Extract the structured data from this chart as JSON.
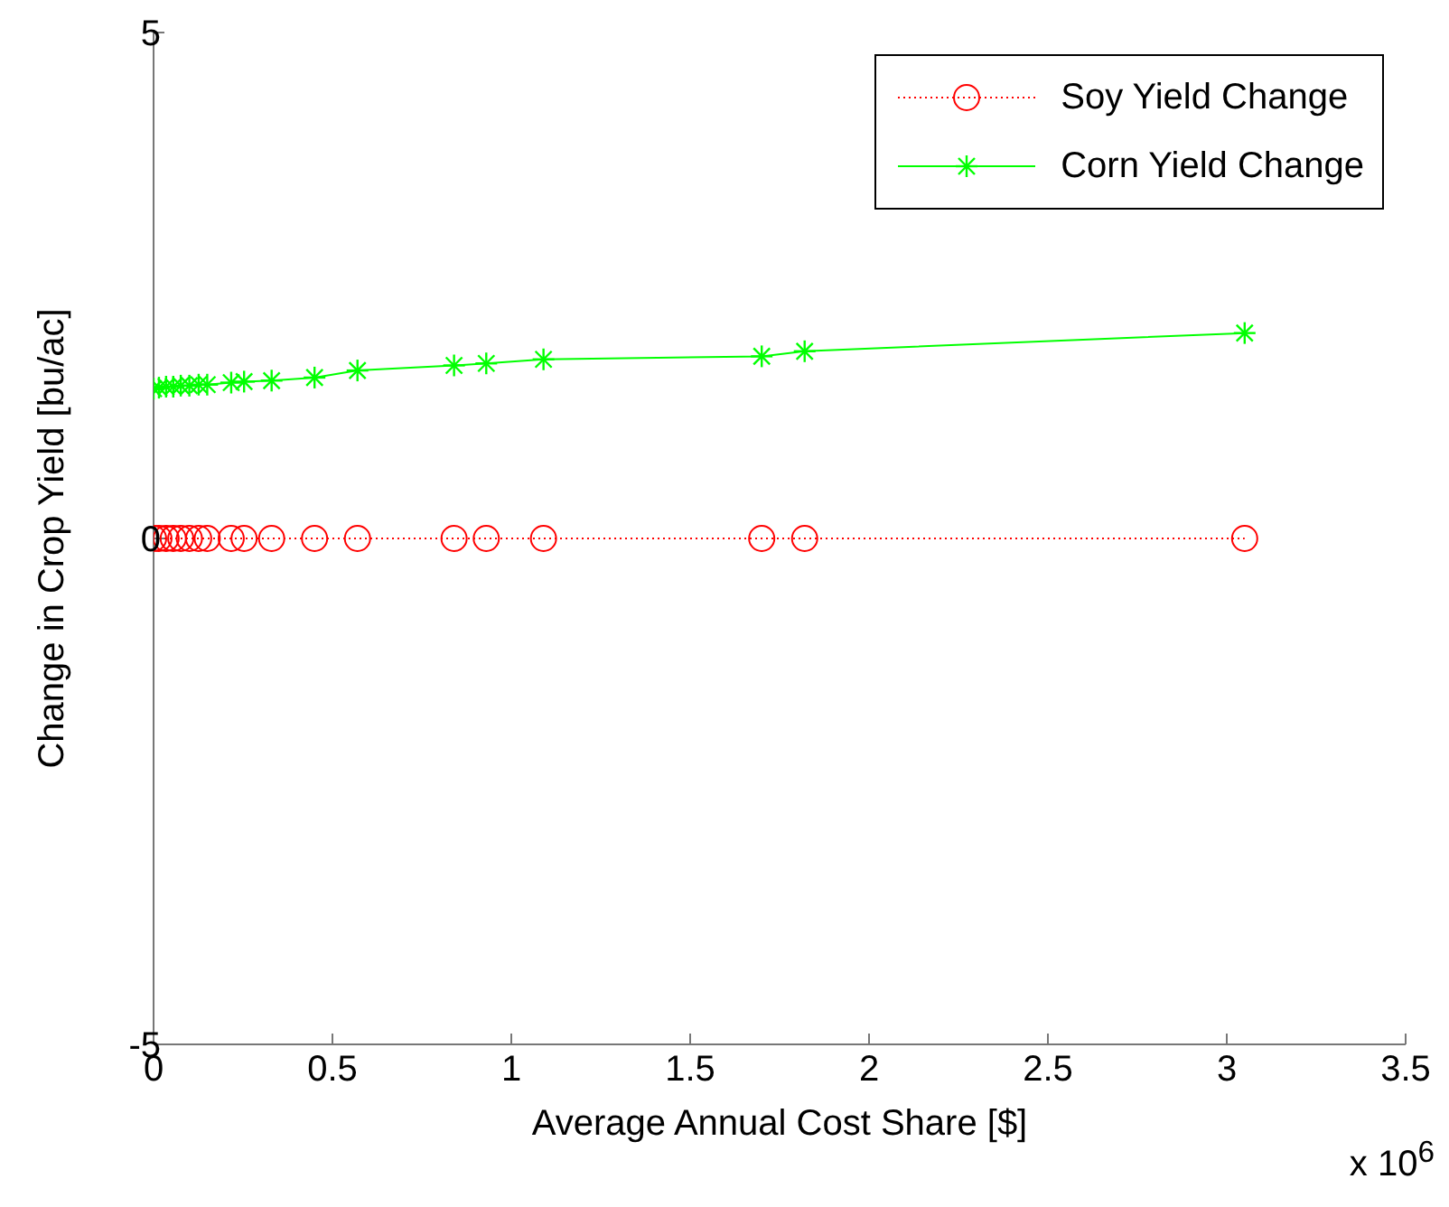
{
  "chart_data": {
    "type": "line",
    "xlabel": "Average Annual Cost Share [$]",
    "ylabel": "Change in Crop Yield [bu/ac]",
    "x": [
      0,
      0.015,
      0.035,
      0.055,
      0.076,
      0.1,
      0.126,
      0.15,
      0.217,
      0.253,
      0.33,
      0.45,
      0.57,
      0.84,
      0.93,
      1.09,
      1.7,
      1.82,
      3.05
    ],
    "series": [
      {
        "name": "Soy Yield Change",
        "color": "#ff0000",
        "marker": "circle",
        "line_style": "dotted",
        "values": [
          0,
          0,
          0,
          0,
          0,
          0,
          0,
          0,
          0,
          0,
          0,
          0,
          0,
          0,
          0,
          0,
          0,
          0,
          0
        ]
      },
      {
        "name": "Corn Yield Change",
        "color": "#00ff00",
        "marker": "cross",
        "line_style": "solid",
        "values": [
          1.48,
          1.49,
          1.5,
          1.5,
          1.51,
          1.51,
          1.52,
          1.52,
          1.54,
          1.55,
          1.56,
          1.59,
          1.66,
          1.71,
          1.73,
          1.77,
          1.8,
          1.85,
          2.03
        ]
      }
    ],
    "xlim": [
      0,
      3.5
    ],
    "xticks": [
      0,
      0.5,
      1,
      1.5,
      2,
      2.5,
      3,
      3.5
    ],
    "ylim": [
      -5,
      5
    ],
    "yticks": [
      -5,
      0,
      5
    ],
    "legend": "top right",
    "grid": false,
    "annotations": [
      "x 10$^{6}$"
    ]
  }
}
